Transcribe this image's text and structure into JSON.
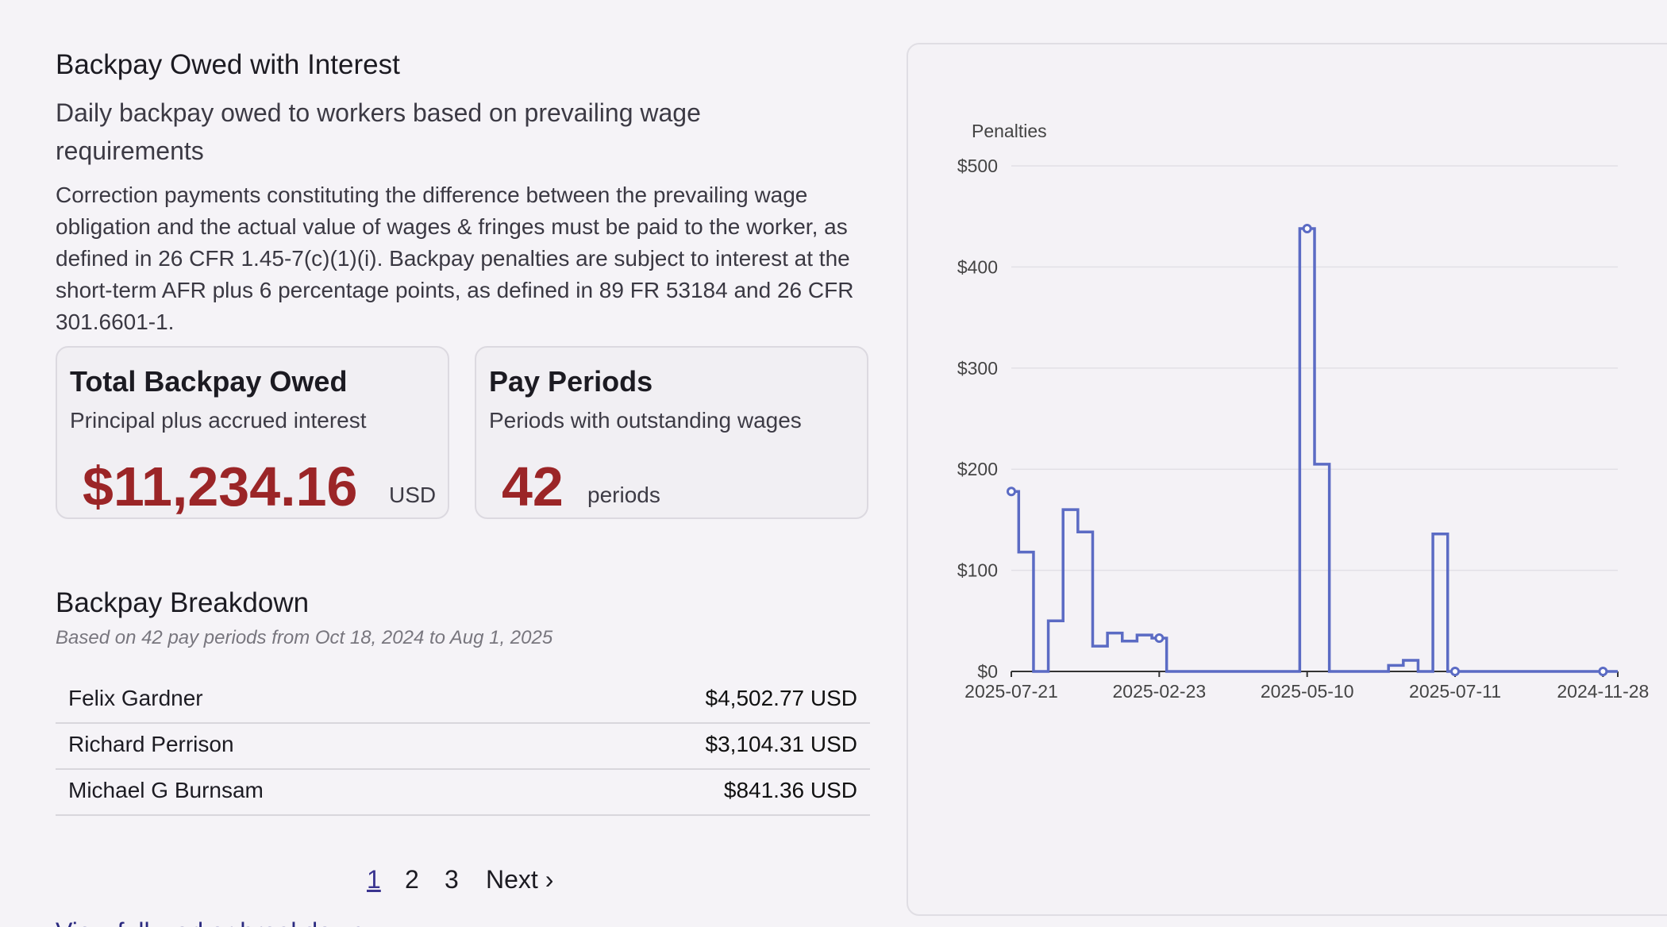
{
  "header": {
    "title": "Backpay Owed with Interest",
    "subtitle": "Daily backpay owed to workers based on prevailing wage requirements",
    "description": "Correction payments constituting the difference between the prevailing wage obligation and the actual value of wages & fringes must be paid to the worker, as defined in 26 CFR 1.45-7(c)(1)(i). Backpay penalties are subject to interest at the short-term AFR plus 6 percentage points, as defined in 89 FR 53184 and 26 CFR 301.6601-1."
  },
  "cards": {
    "total": {
      "title": "Total Backpay Owed",
      "subtitle": "Principal plus accrued interest",
      "value": "$11,234.16",
      "unit": "USD"
    },
    "periods": {
      "title": "Pay Periods",
      "subtitle": "Periods with outstanding wages",
      "value": "42",
      "unit": "periods"
    }
  },
  "breakdown": {
    "title": "Backpay Breakdown",
    "subtitle": "Based on 42 pay periods from Oct 18, 2024 to Aug 1, 2025",
    "rows": [
      {
        "name": "Felix Gardner",
        "amount": "$4,502.77 USD"
      },
      {
        "name": "Richard Perrison",
        "amount": "$3,104.31 USD"
      },
      {
        "name": "Michael G Burnsam",
        "amount": "$841.36 USD"
      }
    ],
    "pagination": {
      "pages": [
        "1",
        "2",
        "3"
      ],
      "current": "1",
      "next_label": "Next ›"
    },
    "view_all_label": "View full worker breakdown",
    "view_all_arrow": "→"
  },
  "colors": {
    "accent_value": "#9b2527",
    "line": "#5b6bc4",
    "link": "#2b2a80"
  },
  "chart_data": {
    "type": "line",
    "ylabel": "Penalties",
    "ylim": [
      0,
      500
    ],
    "yticks": [
      "$0",
      "$100",
      "$200",
      "$300",
      "$400",
      "$500"
    ],
    "yticks_values": [
      0,
      100,
      200,
      300,
      400,
      500
    ],
    "xticks": [
      "2025-07-21",
      "2025-02-23",
      "2025-05-10",
      "2025-07-11",
      "2024-11-28"
    ],
    "grid": true,
    "step": true,
    "series": [
      {
        "values": [
          178,
          118,
          0,
          50,
          160,
          138,
          25,
          38,
          30,
          36,
          33,
          0,
          0,
          0,
          0,
          0,
          0,
          0,
          0,
          0,
          438,
          205,
          0,
          0,
          0,
          0,
          6,
          11,
          0,
          136,
          0,
          0,
          0,
          0,
          0,
          0,
          0,
          0,
          0,
          0,
          0,
          0
        ],
        "markers": [
          0,
          10,
          20,
          30,
          40
        ]
      }
    ]
  }
}
